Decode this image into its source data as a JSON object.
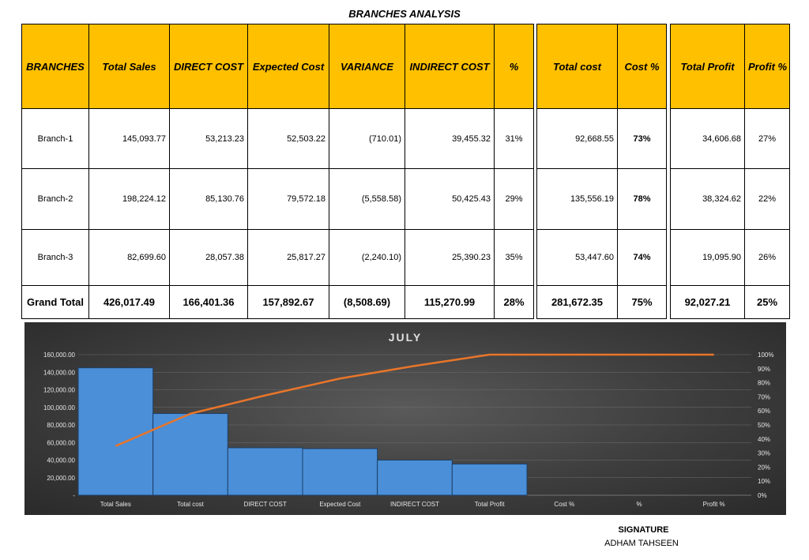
{
  "title": "BRANCHES ANALYSIS",
  "headers": {
    "branches": "BRANCHES",
    "total_sales": "Total Sales",
    "direct_cost": "DIRECT COST",
    "expected_cost": "Expected Cost",
    "variance": "VARIANCE",
    "indirect_cost": "INDIRECT COST",
    "pct": "%",
    "total_cost": "Total cost",
    "cost_pct": "Cost %",
    "total_profit": "Total Profit",
    "profit_pct": "Profit %"
  },
  "rows": [
    {
      "branch": "Branch-1",
      "total_sales": "145,093.77",
      "direct_cost": "53,213.23",
      "expected_cost": "52,503.22",
      "variance": "(710.01)",
      "indirect_cost": "39,455.32",
      "pct": "31%",
      "total_cost": "92,668.55",
      "cost_pct": "73%",
      "total_profit": "34,606.68",
      "profit_pct": "27%"
    },
    {
      "branch": "Branch-2",
      "total_sales": "198,224.12",
      "direct_cost": "85,130.76",
      "expected_cost": "79,572.18",
      "variance": "(5,558.58)",
      "indirect_cost": "50,425.43",
      "pct": "29%",
      "total_cost": "135,556.19",
      "cost_pct": "78%",
      "total_profit": "38,324.62",
      "profit_pct": "22%"
    },
    {
      "branch": "Branch-3",
      "total_sales": "82,699.60",
      "direct_cost": "28,057.38",
      "expected_cost": "25,817.27",
      "variance": "(2,240.10)",
      "indirect_cost": "25,390.23",
      "pct": "35%",
      "total_cost": "53,447.60",
      "cost_pct": "74%",
      "total_profit": "19,095.90",
      "profit_pct": "26%"
    }
  ],
  "grand_total": {
    "label": "Grand Total",
    "total_sales": "426,017.49",
    "direct_cost": "166,401.36",
    "expected_cost": "157,892.67",
    "variance": "(8,508.69)",
    "indirect_cost": "115,270.99",
    "pct": "28%",
    "total_cost": "281,672.35",
    "cost_pct": "75%",
    "total_profit": "92,027.21",
    "profit_pct": "25%"
  },
  "chart_data": {
    "type": "bar",
    "title": "JULY",
    "categories": [
      "Total Sales",
      "Total cost",
      "DIRECT COST",
      "Expected Cost",
      "INDIRECT COST",
      "Total Profit",
      "Cost %",
      "%",
      "Profit %"
    ],
    "values": [
      145000,
      93000,
      54000,
      53000,
      40000,
      35500,
      0,
      0,
      0
    ],
    "cumulative_pct": [
      0.35,
      0.58,
      0.71,
      0.83,
      0.92,
      1.0,
      1.0,
      1.0,
      1.0
    ],
    "ylim": [
      0,
      160000
    ],
    "yticks": [
      "-",
      "20,000.00",
      "40,000.00",
      "60,000.00",
      "80,000.00",
      "100,000.00",
      "120,000.00",
      "140,000.00",
      "160,000.00"
    ],
    "y2ticks": [
      "0%",
      "10%",
      "20%",
      "30%",
      "40%",
      "50%",
      "60%",
      "70%",
      "80%",
      "90%",
      "100%"
    ],
    "bar_color": "#4a8fd8",
    "line_color": "#e8752a",
    "grid": true
  },
  "signature": {
    "label": "SIGNATURE",
    "name": "ADHAM TAHSEEN"
  }
}
